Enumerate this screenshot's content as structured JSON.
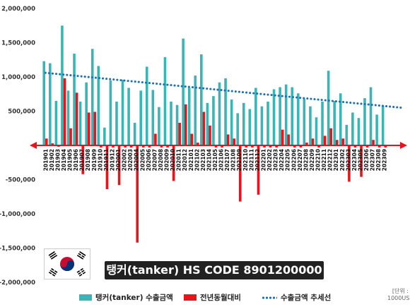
{
  "title": "탱커(tanker) HS CODE 8901200000",
  "unit_note": "[단위 : 1000USD]",
  "legend": {
    "export": "탱커(tanker) 수출금액",
    "yoy": "전년동월대비",
    "trend": "수출금액 추세선"
  },
  "colors": {
    "export": "#3ab5b5",
    "yoy": "#e8141b",
    "trend": "#1f6fb5",
    "axis": "#e8141b"
  },
  "icons": {
    "flag": "south-korea-flag-icon"
  },
  "chart_data": {
    "type": "bar",
    "x": [
      "201901",
      "201902",
      "201903",
      "201904",
      "201905",
      "201906",
      "201907",
      "201908",
      "201909",
      "201910",
      "201911",
      "201912",
      "202001",
      "202002",
      "202003",
      "202004",
      "202005",
      "202006",
      "202007",
      "202008",
      "202009",
      "202010",
      "202011",
      "202012",
      "202101",
      "202102",
      "202103",
      "202104",
      "202105",
      "202106",
      "202107",
      "202108",
      "202109",
      "202110",
      "202111",
      "202112",
      "202201",
      "202202",
      "202203",
      "202204",
      "202205",
      "202206",
      "202207",
      "202208",
      "202209",
      "202210",
      "202211",
      "202212",
      "202301",
      "202302",
      "202303",
      "202304",
      "202305",
      "202306",
      "202307",
      "202308",
      "202309"
    ],
    "x_tick_labels": [
      "201901",
      "201902",
      "201903",
      "201904",
      "201905",
      "201906",
      "201907",
      "201908",
      "201909",
      "201910",
      "201911",
      "201912",
      "202001",
      "202002",
      "202003",
      "202004",
      "202005",
      "202006",
      "202007",
      "202008",
      "202009",
      "202010",
      "202011",
      "202012",
      "202101",
      "202102",
      "202103",
      "202104",
      "202105",
      "202106",
      "202107",
      "202108",
      "202109",
      "202110",
      "202111",
      "202112",
      "202201",
      "202202",
      "202203",
      "202204",
      "202205",
      "202206",
      "202207",
      "202208",
      "202209",
      "202210",
      "202211",
      "202212",
      "202301",
      "202302",
      "202303",
      "202304",
      "202305",
      "202306",
      "202307",
      "202308",
      "202309"
    ],
    "series": [
      {
        "name": "탱커(tanker) 수출금액",
        "kind": "bar",
        "values": [
          1230000,
          1200000,
          650000,
          1750000,
          800000,
          1340000,
          640000,
          920000,
          1410000,
          1160000,
          260000,
          950000,
          640000,
          960000,
          840000,
          330000,
          800000,
          1150000,
          810000,
          560000,
          1290000,
          640000,
          590000,
          1560000,
          840000,
          1020000,
          1330000,
          620000,
          720000,
          920000,
          980000,
          670000,
          470000,
          620000,
          530000,
          840000,
          570000,
          640000,
          820000,
          850000,
          890000,
          850000,
          760000,
          680000,
          570000,
          410000,
          640000,
          1090000,
          650000,
          760000,
          300000,
          480000,
          400000,
          690000,
          850000,
          450000,
          580000
        ]
      },
      {
        "name": "전년동월대비",
        "kind": "bar",
        "values": [
          100000,
          30000,
          -20000,
          980000,
          250000,
          770000,
          -420000,
          480000,
          490000,
          -30000,
          -640000,
          -30000,
          -580000,
          -30000,
          -30000,
          -1420000,
          -30000,
          -30000,
          170000,
          -30000,
          -30000,
          -520000,
          330000,
          600000,
          170000,
          40000,
          490000,
          290000,
          -30000,
          -30000,
          160000,
          100000,
          -820000,
          -30000,
          -30000,
          -720000,
          -30000,
          -30000,
          -30000,
          230000,
          160000,
          -30000,
          -30000,
          40000,
          100000,
          -30000,
          140000,
          250000,
          80000,
          100000,
          -530000,
          -30000,
          -460000,
          -30000,
          80000,
          -30000,
          -30000
        ]
      },
      {
        "name": "수출금액 추세선",
        "kind": "trend",
        "start": 1060000,
        "end": 550000
      }
    ],
    "ylim": [
      -2000000,
      2000000
    ],
    "yticks": [
      2000000,
      1500000,
      1000000,
      500000,
      0,
      -500000,
      -1000000,
      -1500000,
      -2000000
    ],
    "ytick_labels": [
      "2,000,000",
      "1,500,000",
      "1,000,000",
      "500,000",
      "-",
      "-500,000",
      "-1,000,000",
      "-1,500,000",
      "-2,000,000"
    ],
    "grid": false,
    "legend_position": "bottom"
  }
}
